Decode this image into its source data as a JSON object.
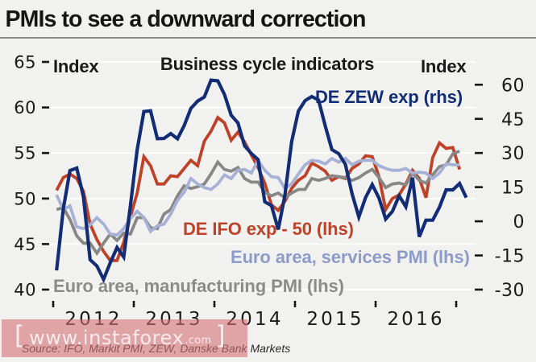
{
  "title": "PMIs to see a downward correction",
  "source": "Source: IFO, Markit PMI, ZEW, Danske Bank Markets",
  "watermark": {
    "bracket_left": "[",
    "text": "www.instaforex",
    "suffix": ".com",
    "bracket_right": "]",
    "box_color": "rgba(214,111,117,0.60)"
  },
  "chart_data": {
    "type": "line",
    "title": "Business cycle indicators",
    "left_axis": {
      "label": "Index",
      "ticks": [
        65,
        60,
        55,
        50,
        45,
        40
      ],
      "range": [
        40,
        65
      ]
    },
    "right_axis": {
      "label": "Index",
      "ticks": [
        60,
        45,
        30,
        15,
        0,
        -15,
        -30
      ],
      "range": [
        -30,
        70
      ]
    },
    "x_axis": {
      "start_year": 2012,
      "tick_count": 6,
      "year_labels": [
        "2012",
        "2013",
        "2014",
        "2015",
        "2016"
      ]
    },
    "grid": "horizontal-white",
    "legend_position": "in-plot",
    "series": [
      {
        "name": "DE IFO exp - 50 (lhs)",
        "axis": "left",
        "color": "#bf4127",
        "start": [
          2012,
          1
        ],
        "values": [
          50.9,
          52.3,
          52.7,
          52.2,
          50.8,
          47.2,
          45.5,
          44.2,
          43.2,
          43.2,
          45.2,
          48.0,
          50.6,
          54.6,
          53.6,
          51.6,
          51.6,
          52.5,
          52.4,
          53.3,
          54.2,
          53.6,
          56.3,
          57.4,
          58.9,
          58.3,
          56.4,
          57.3,
          56.2,
          54.8,
          53.4,
          51.7,
          49.3,
          48.7,
          49.7,
          51.1,
          52.0,
          52.5,
          53.9,
          53.5,
          53.0,
          52.0,
          52.4,
          52.2,
          53.3,
          53.8,
          54.7,
          54.6,
          52.4,
          48.8,
          50.0,
          50.4,
          51.6,
          53.1,
          52.2,
          50.1,
          54.5,
          56.1,
          55.5,
          55.6,
          53.2
        ]
      },
      {
        "name": "Euro area, manufacturing PMI (lhs)",
        "axis": "left",
        "color": "#878787",
        "start": [
          2012,
          1
        ],
        "values": [
          48.8,
          49.0,
          47.7,
          45.9,
          45.1,
          45.1,
          44.0,
          45.1,
          46.1,
          45.4,
          46.2,
          46.1,
          47.9,
          47.9,
          46.8,
          46.7,
          48.3,
          48.8,
          50.3,
          51.4,
          51.1,
          51.3,
          51.6,
          52.7,
          54.0,
          53.2,
          53.0,
          53.4,
          52.2,
          51.8,
          51.8,
          50.7,
          50.3,
          50.6,
          50.1,
          50.6,
          51.0,
          51.0,
          52.2,
          52.0,
          52.2,
          52.5,
          52.4,
          52.3,
          52.0,
          52.3,
          52.8,
          53.2,
          52.3,
          51.2,
          51.6,
          51.7,
          51.5,
          52.8,
          52.0,
          51.7,
          52.6,
          53.5,
          53.7,
          54.9,
          55.2
        ]
      },
      {
        "name": "Euro area, services PMI (lhs)",
        "axis": "left",
        "color": "#a7b1d6",
        "start": [
          2012,
          1
        ],
        "values": [
          50.4,
          48.8,
          49.2,
          46.9,
          46.7,
          47.1,
          47.9,
          47.2,
          46.1,
          46.0,
          46.7,
          47.8,
          48.6,
          47.9,
          46.4,
          47.0,
          47.2,
          48.3,
          49.8,
          50.7,
          52.2,
          51.6,
          51.2,
          51.0,
          51.6,
          52.6,
          52.2,
          53.1,
          53.2,
          52.8,
          54.2,
          53.1,
          52.4,
          52.3,
          51.1,
          51.6,
          52.7,
          53.7,
          54.2,
          54.1,
          53.8,
          54.4,
          54.0,
          54.4,
          53.7,
          54.1,
          54.2,
          54.2,
          53.6,
          53.3,
          53.1,
          53.1,
          53.3,
          52.8,
          52.9,
          52.8,
          52.2,
          52.8,
          53.8,
          53.7,
          53.7
        ]
      },
      {
        "name": "DE ZEW exp (rhs)",
        "axis": "right",
        "color": "#122d76",
        "start": [
          2012,
          1
        ],
        "values": [
          -21.6,
          5.4,
          22.3,
          23.4,
          10.8,
          -16.9,
          -19.6,
          -25.5,
          -18.2,
          -11.5,
          -15.7,
          6.9,
          31.5,
          48.2,
          48.5,
          36.3,
          36.4,
          38.5,
          36.3,
          42.0,
          49.6,
          52.8,
          54.6,
          62.0,
          61.7,
          55.7,
          46.6,
          43.2,
          33.1,
          29.8,
          27.1,
          8.6,
          6.9,
          -3.6,
          11.5,
          34.9,
          48.4,
          53.0,
          54.8,
          53.3,
          41.9,
          31.5,
          29.7,
          25.0,
          12.1,
          1.9,
          10.4,
          16.1,
          10.2,
          1.0,
          4.3,
          11.2,
          6.4,
          19.2,
          -6.8,
          0.5,
          0.5,
          6.2,
          13.8,
          13.8,
          16.6,
          10.4
        ]
      }
    ],
    "series_labels": [
      {
        "text": "DE ZEW exp (rhs)",
        "color": "#122d76"
      },
      {
        "text": "DE IFO exp - 50 (lhs)",
        "color": "#bf4127"
      },
      {
        "text": "Euro area, services PMI (lhs)",
        "color": "#8d9bc9"
      },
      {
        "text": "Euro area, manufacturing PMI (lhs)",
        "color": "#8b8b8b"
      }
    ]
  }
}
